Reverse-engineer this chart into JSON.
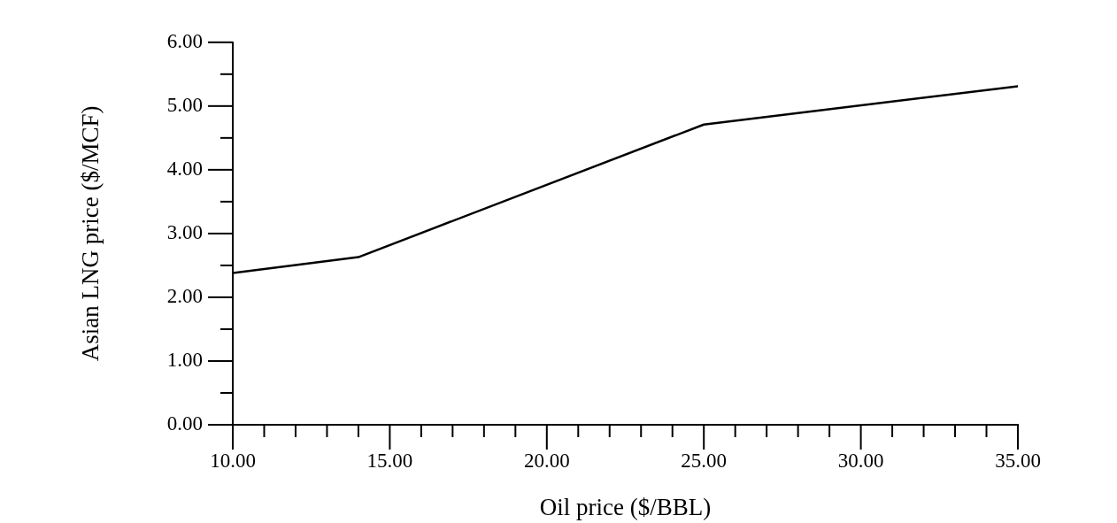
{
  "chart_data": {
    "type": "line",
    "xlabel": "Oil price ($/BBL)",
    "ylabel": "Asian LNG price ($/MCF)",
    "x": [
      10,
      14,
      25,
      35
    ],
    "series": [
      {
        "color": "#000000",
        "values": [
          2.38,
          2.63,
          4.71,
          5.31
        ]
      }
    ],
    "xlim": [
      10,
      35
    ],
    "xticks": [
      {
        "value": 10,
        "label": "10.00"
      },
      {
        "value": 11,
        "label": null
      },
      {
        "value": 12,
        "label": null
      },
      {
        "value": 13,
        "label": null
      },
      {
        "value": 14,
        "label": null
      },
      {
        "value": 15,
        "label": "15.00"
      },
      {
        "value": 16,
        "label": null
      },
      {
        "value": 17,
        "label": null
      },
      {
        "value": 18,
        "label": null
      },
      {
        "value": 19,
        "label": null
      },
      {
        "value": 20,
        "label": "20.00"
      },
      {
        "value": 21,
        "label": null
      },
      {
        "value": 22,
        "label": null
      },
      {
        "value": 23,
        "label": null
      },
      {
        "value": 24,
        "label": null
      },
      {
        "value": 25,
        "label": "25.00"
      },
      {
        "value": 26,
        "label": null
      },
      {
        "value": 27,
        "label": null
      },
      {
        "value": 28,
        "label": null
      },
      {
        "value": 29,
        "label": null
      },
      {
        "value": 30,
        "label": "30.00"
      },
      {
        "value": 31,
        "label": null
      },
      {
        "value": 32,
        "label": null
      },
      {
        "value": 33,
        "label": null
      },
      {
        "value": 34,
        "label": null
      },
      {
        "value": 35,
        "label": "35.00"
      }
    ],
    "ylim": [
      0,
      6
    ],
    "yticks": [
      {
        "value": 0,
        "label": "0.00"
      },
      {
        "value": 0.5,
        "label": null
      },
      {
        "value": 1,
        "label": "1.00"
      },
      {
        "value": 1.5,
        "label": null
      },
      {
        "value": 2,
        "label": "2.00"
      },
      {
        "value": 2.5,
        "label": null
      },
      {
        "value": 3,
        "label": "3.00"
      },
      {
        "value": 3.5,
        "label": null
      },
      {
        "value": 4,
        "label": "4.00"
      },
      {
        "value": 4.5,
        "label": null
      },
      {
        "value": 5,
        "label": "5.00"
      },
      {
        "value": 5.5,
        "label": null
      },
      {
        "value": 6,
        "label": "6.00"
      }
    ],
    "grid": false,
    "legend": false,
    "marker": "none",
    "line_style": "solid"
  }
}
